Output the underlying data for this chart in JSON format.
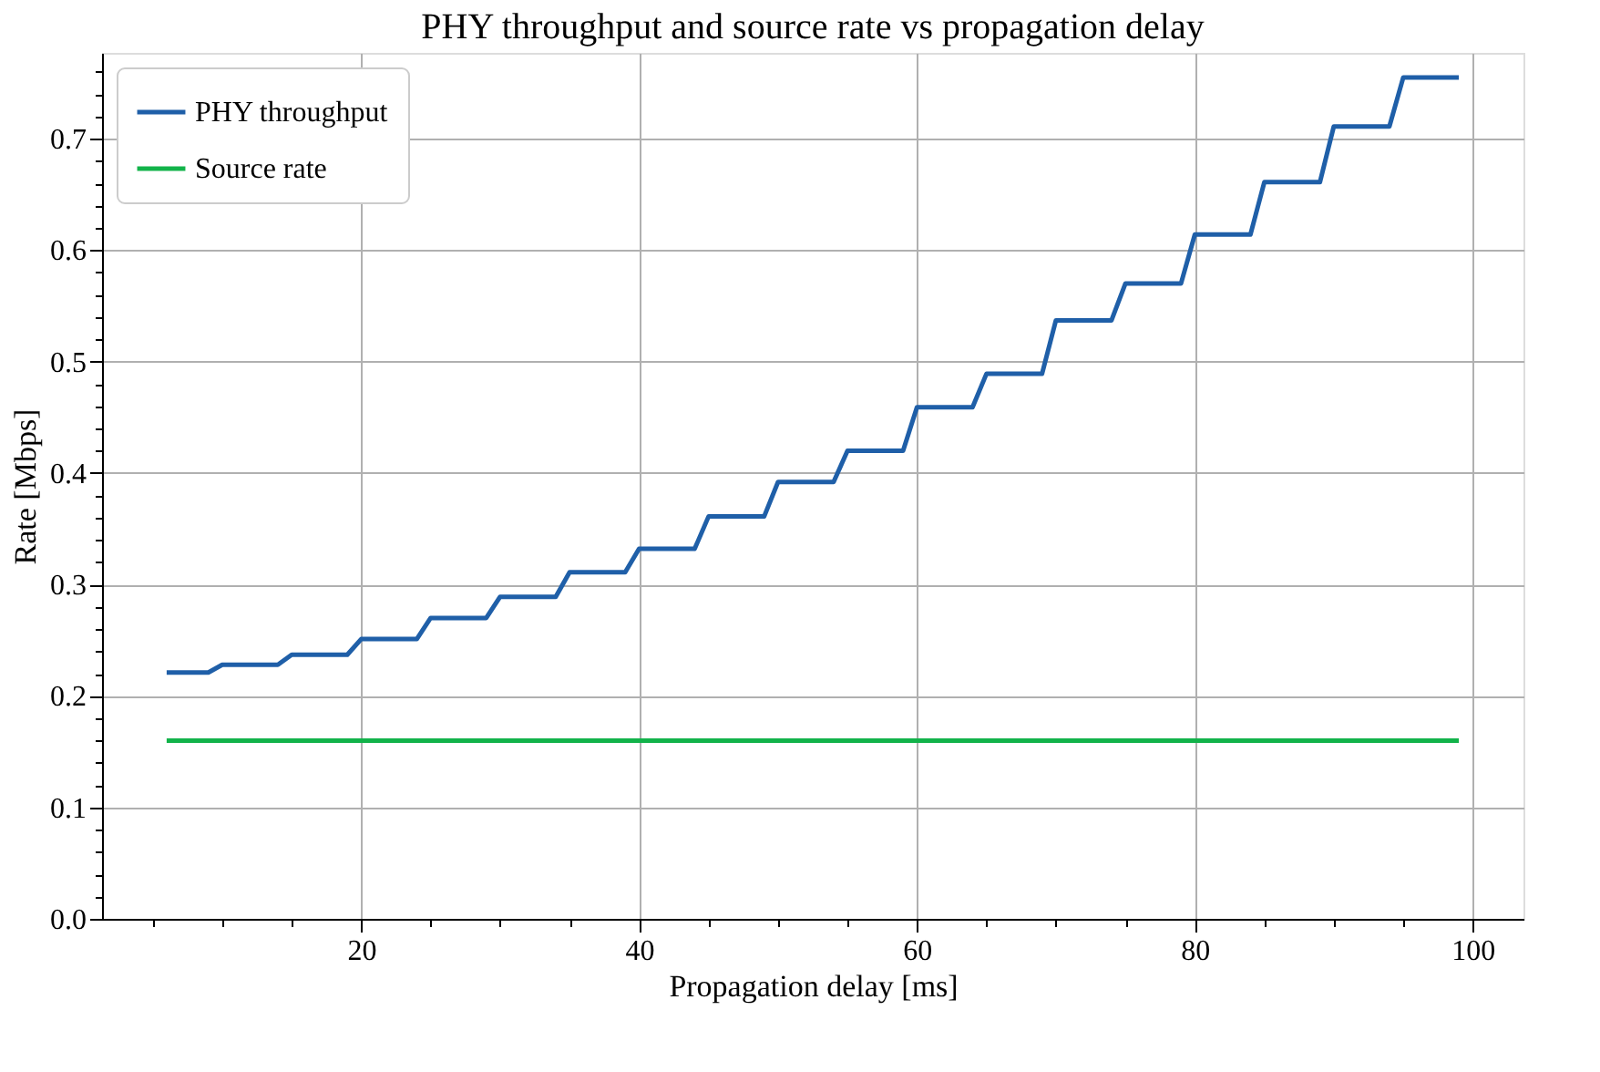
{
  "chart_data": {
    "type": "line",
    "title": "PHY throughput and source rate vs propagation delay",
    "xlabel": "Propagation delay [ms]",
    "ylabel": "Rate [Mbps]",
    "xlim": [
      1.35,
      103.65
    ],
    "ylim": [
      0,
      0.777
    ],
    "xticks": [
      {
        "value": 5,
        "label": null
      },
      {
        "value": 10,
        "label": null
      },
      {
        "value": 15,
        "label": null
      },
      20,
      {
        "value": 25,
        "label": null
      },
      {
        "value": 30,
        "label": null
      },
      {
        "value": 35,
        "label": null
      },
      40,
      {
        "value": 45,
        "label": null
      },
      {
        "value": 50,
        "label": null
      },
      {
        "value": 55,
        "label": null
      },
      60,
      {
        "value": 65,
        "label": null
      },
      {
        "value": 70,
        "label": null
      },
      {
        "value": 75,
        "label": null
      },
      80,
      {
        "value": 85,
        "label": null
      },
      {
        "value": 90,
        "label": null
      },
      {
        "value": 95,
        "label": null
      },
      100
    ],
    "yticks": [
      {
        "value": 0,
        "label": "0.0"
      },
      {
        "value": 0.02,
        "label": null
      },
      {
        "value": 0.04,
        "label": null
      },
      {
        "value": 0.06,
        "label": null
      },
      {
        "value": 0.08,
        "label": null
      },
      0.1,
      {
        "value": 0.12,
        "label": null
      },
      {
        "value": 0.14,
        "label": null
      },
      {
        "value": 0.16,
        "label": null
      },
      {
        "value": 0.18,
        "label": null
      },
      0.2,
      {
        "value": 0.22,
        "label": null
      },
      {
        "value": 0.24,
        "label": null
      },
      {
        "value": 0.26,
        "label": null
      },
      {
        "value": 0.28,
        "label": null
      },
      0.3,
      {
        "value": 0.32,
        "label": null
      },
      {
        "value": 0.34,
        "label": null
      },
      {
        "value": 0.36,
        "label": null
      },
      {
        "value": 0.38,
        "label": null
      },
      0.4,
      {
        "value": 0.42,
        "label": null
      },
      {
        "value": 0.44,
        "label": null
      },
      {
        "value": 0.46,
        "label": null
      },
      {
        "value": 0.48,
        "label": null
      },
      0.5,
      {
        "value": 0.52,
        "label": null
      },
      {
        "value": 0.54,
        "label": null
      },
      {
        "value": 0.56,
        "label": null
      },
      {
        "value": 0.58,
        "label": null
      },
      0.6,
      {
        "value": 0.62,
        "label": null
      },
      {
        "value": 0.64,
        "label": null
      },
      {
        "value": 0.66,
        "label": null
      },
      {
        "value": 0.68,
        "label": null
      },
      0.7,
      {
        "value": 0.72,
        "label": null
      },
      {
        "value": 0.74,
        "label": null
      },
      {
        "value": 0.76,
        "label": null
      }
    ],
    "grid": true,
    "legend": "top left",
    "marker": "none",
    "line_style": "solid",
    "series": [
      {
        "name": "PHY throughput",
        "color": "#1f5fa8",
        "x": [
          6,
          9,
          10,
          14,
          15,
          19,
          20,
          24,
          25,
          29,
          30,
          34,
          35,
          39,
          40,
          44,
          45,
          49,
          50,
          54,
          55,
          59,
          60,
          64,
          65,
          69,
          70,
          74,
          75,
          79,
          80,
          84,
          85,
          89,
          90,
          94,
          95,
          99
        ],
        "values": [
          0.221,
          0.221,
          0.228,
          0.228,
          0.237,
          0.237,
          0.251,
          0.251,
          0.27,
          0.27,
          0.289,
          0.289,
          0.311,
          0.311,
          0.332,
          0.332,
          0.361,
          0.361,
          0.392,
          0.392,
          0.42,
          0.42,
          0.459,
          0.459,
          0.489,
          0.489,
          0.537,
          0.537,
          0.57,
          0.57,
          0.614,
          0.614,
          0.661,
          0.661,
          0.711,
          0.711,
          0.755,
          0.755
        ]
      },
      {
        "name": "Source rate",
        "color": "#12b34a",
        "x": [
          6,
          99
        ],
        "values": [
          0.16,
          0.16
        ]
      }
    ]
  }
}
